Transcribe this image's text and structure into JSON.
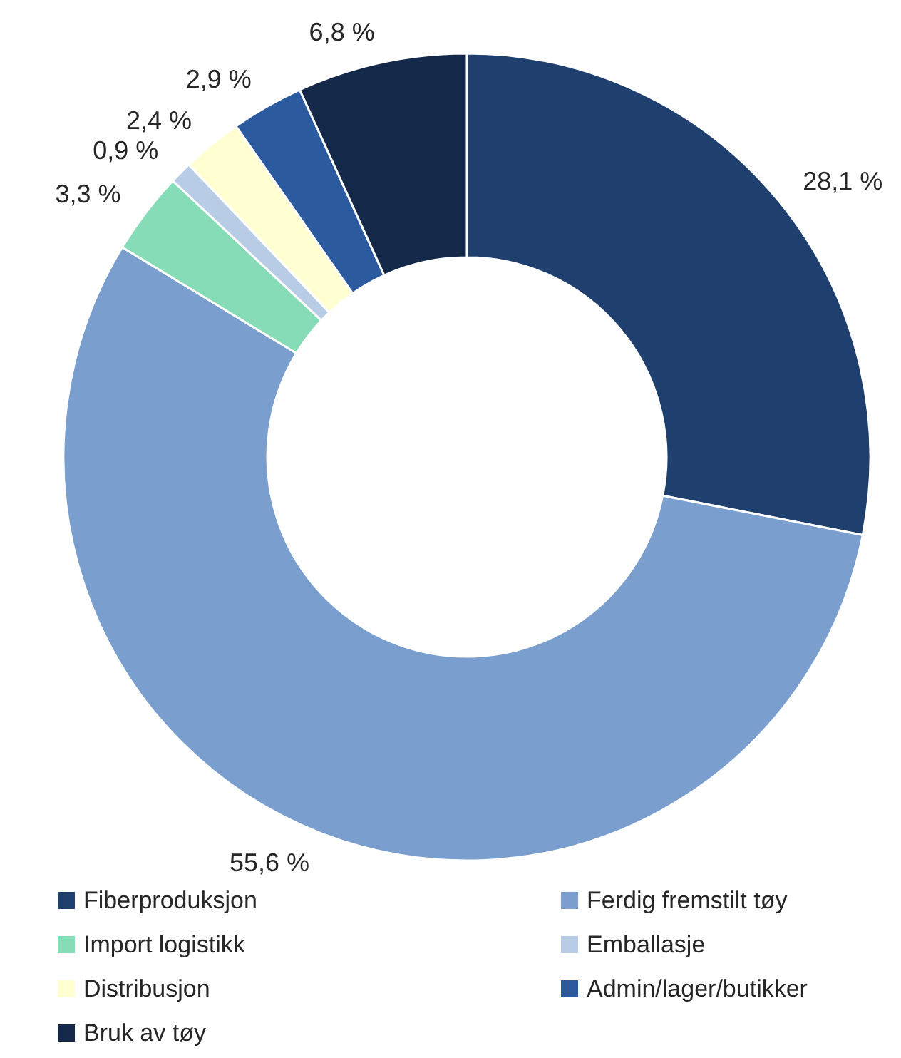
{
  "chart_data": {
    "type": "donut",
    "categories": [
      "Fiberproduksjon",
      "Ferdig fremstilt tøy",
      "Import logistikk",
      "Emballasje",
      "Distribusjon",
      "Admin/lager/butikker",
      "Bruk av tøy"
    ],
    "values": [
      28.1,
      55.6,
      3.3,
      0.9,
      2.4,
      2.9,
      6.8
    ],
    "colors": [
      "#1f3f6e",
      "#7a9fcf",
      "#86dcb6",
      "#b9cce6",
      "#ffffd2",
      "#2b5a9e",
      "#14294a"
    ],
    "value_labels": [
      "28,1 %",
      "55,6 %",
      "3,3 %",
      "0,9 %",
      "2,4 %",
      "2,9 %",
      "6,8 %"
    ],
    "legend": "bottom"
  }
}
